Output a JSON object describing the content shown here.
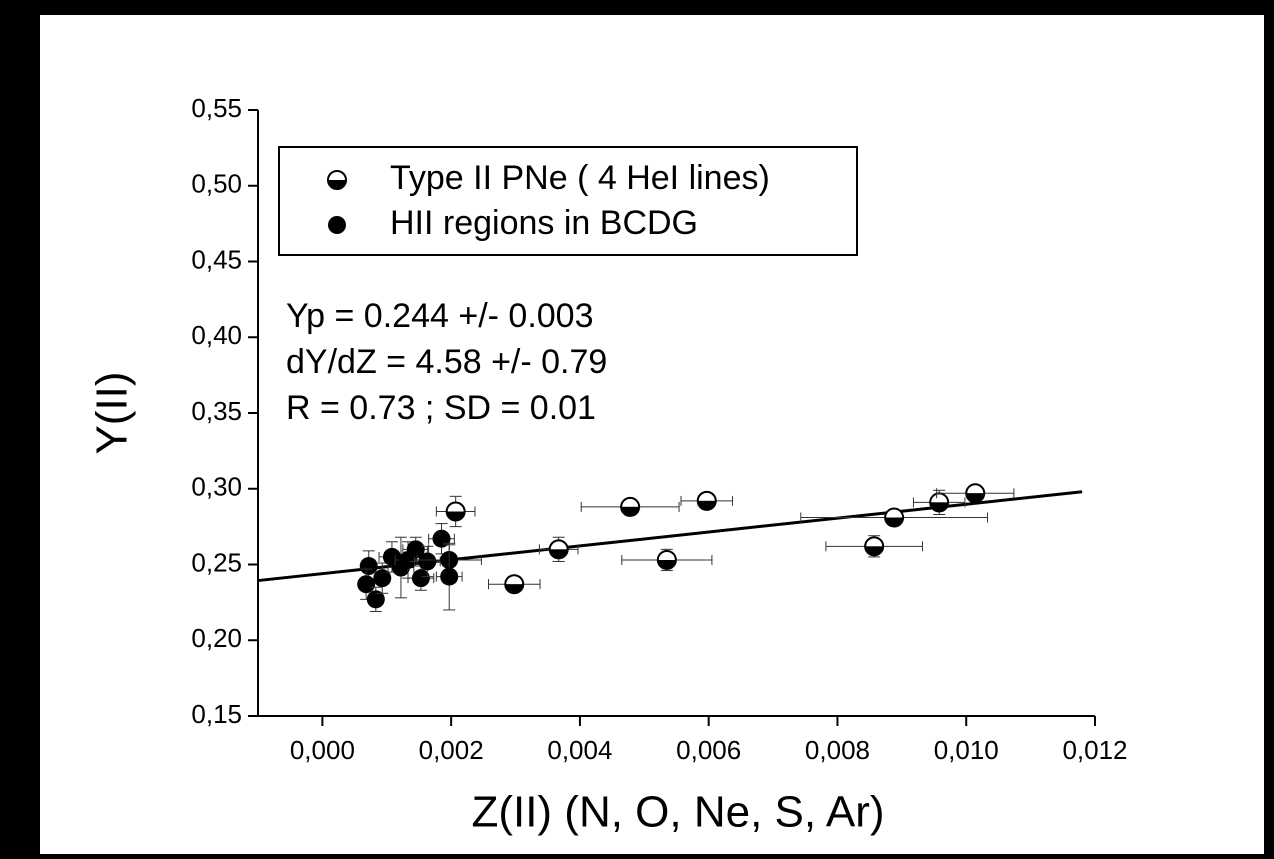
{
  "chart_data": {
    "type": "scatter",
    "xlabel": "Z(II) (N, O, Ne, S, Ar)",
    "ylabel": "Y(II)",
    "xlim": [
      -0.001,
      0.012
    ],
    "ylim": [
      0.15,
      0.55
    ],
    "xticks": [
      {
        "value": 0,
        "label": "0,000"
      },
      {
        "value": 0.002,
        "label": "0,002"
      },
      {
        "value": 0.004,
        "label": "0,004"
      },
      {
        "value": 0.006,
        "label": "0,006"
      },
      {
        "value": 0.008,
        "label": "0,008"
      },
      {
        "value": 0.01,
        "label": "0,010"
      },
      {
        "value": 0.012,
        "label": "0,012"
      }
    ],
    "yticks": [
      {
        "value": 0.15,
        "label": "0,15"
      },
      {
        "value": 0.2,
        "label": "0,20"
      },
      {
        "value": 0.25,
        "label": "0,25"
      },
      {
        "value": 0.3,
        "label": "0,30"
      },
      {
        "value": 0.35,
        "label": "0,35"
      },
      {
        "value": 0.4,
        "label": "0,40"
      },
      {
        "value": 0.45,
        "label": "0,45"
      },
      {
        "value": 0.5,
        "label": "0,50"
      },
      {
        "value": 0.55,
        "label": "0,55"
      }
    ],
    "legend": "upper left",
    "series": [
      {
        "name": "Type II PNe ( 4 HeI lines)",
        "marker": "half",
        "color": "#000000",
        "x": [
          0.00207,
          0.00298,
          0.00367,
          0.00478,
          0.00535,
          0.00597,
          0.00857,
          0.00888,
          0.00958,
          0.01014
        ],
        "values": [
          0.285,
          0.237,
          0.26,
          0.288,
          0.253,
          0.292,
          0.262,
          0.281,
          0.291,
          0.297
        ],
        "xerr": [
          0.0003,
          0.0004,
          0.0003,
          0.00076,
          0.0007,
          0.0004,
          0.00075,
          0.00145,
          0.0004,
          0.0006
        ],
        "yerr": [
          0.01,
          0.005,
          0.008,
          0.004,
          0.007,
          0.005,
          0.007,
          0.005,
          0.008,
          0.004
        ]
      },
      {
        "name": "HII regions in BCDG",
        "marker": "filled",
        "color": "#000000",
        "x": [
          0.00072,
          0.00068,
          0.00083,
          0.00093,
          0.00108,
          0.00122,
          0.00133,
          0.00145,
          0.00153,
          0.00163,
          0.00185,
          0.00197,
          0.00197
        ],
        "values": [
          0.249,
          0.237,
          0.227,
          0.241,
          0.255,
          0.248,
          0.253,
          0.26,
          0.241,
          0.252,
          0.267,
          0.253,
          0.242
        ],
        "xerr": [
          0.0001,
          0.0001,
          0.0001,
          0.0001,
          0.0002,
          0.0002,
          0.0002,
          0.0002,
          0.0002,
          0.0002,
          0.0002,
          0.0005,
          0.0002
        ],
        "yerr": [
          0.01,
          0.01,
          0.008,
          0.01,
          0.01,
          0.02,
          0.012,
          0.008,
          0.008,
          0.01,
          0.01,
          0.01,
          0.022
        ]
      }
    ],
    "trend_line": {
      "x": [
        -0.001,
        0.0118
      ],
      "y": [
        0.2394,
        0.298
      ]
    },
    "annotations": [
      "Yp = 0.244 +/- 0.003",
      "dY/dZ = 4.58 +/- 0.79",
      "R = 0.73 ; SD = 0.01"
    ]
  }
}
